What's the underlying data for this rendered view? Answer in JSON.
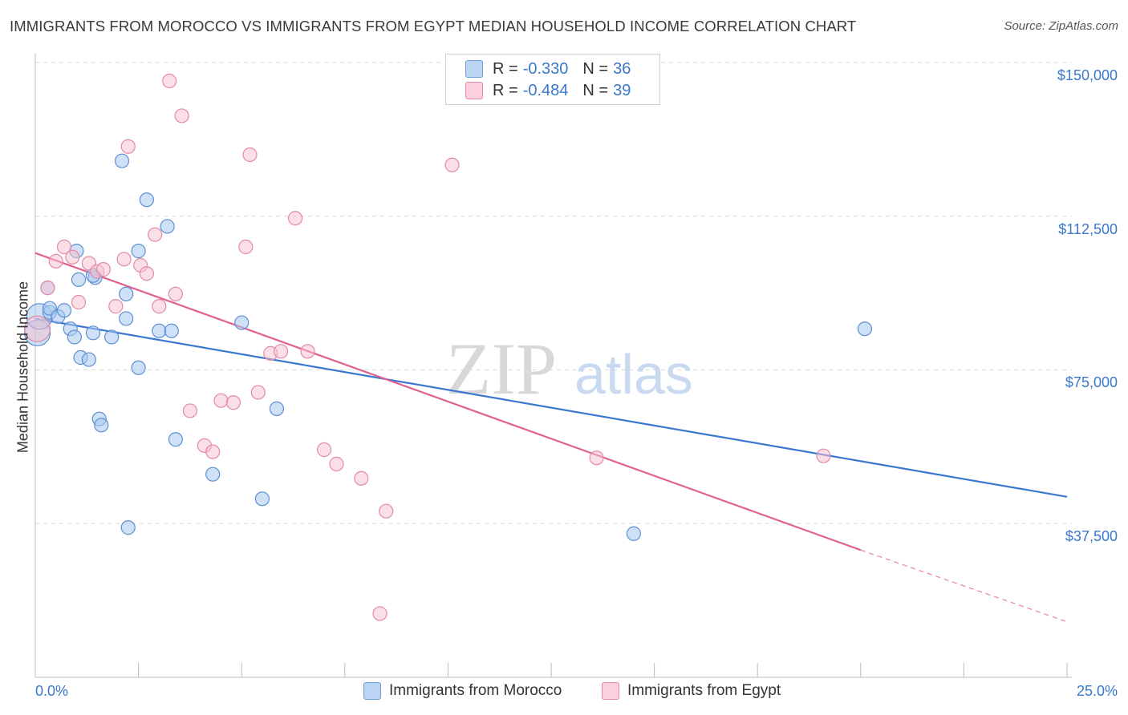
{
  "title": "IMMIGRANTS FROM MOROCCO VS IMMIGRANTS FROM EGYPT MEDIAN HOUSEHOLD INCOME CORRELATION CHART",
  "source": "Source: ZipAtlas.com",
  "watermark": {
    "zip": "ZIP",
    "atlas": "atlas"
  },
  "legend": {
    "rows": [
      {
        "r_label": "R =",
        "r_value": "-0.330",
        "n_label": "N =",
        "n_value": "36",
        "color": "#a8c8f0",
        "border": "#6f9fd8"
      },
      {
        "r_label": "R =",
        "r_value": "-0.484",
        "n_label": "N =",
        "n_value": "39",
        "color": "#f8c0d0",
        "border": "#e88aa8"
      }
    ]
  },
  "bottom_legend": {
    "morocco": "Immigrants from Morocco",
    "egypt": "Immigrants from Egypt"
  },
  "colors": {
    "morocco": "#3a78d0",
    "egypt": "#e0628f",
    "tick": "#3a78c9"
  },
  "chart_data": {
    "type": "scatter",
    "ylabel": "Median Household Income",
    "xlim": [
      0,
      25
    ],
    "ylim": [
      0,
      155000
    ],
    "y_ticks": [
      {
        "value": 37500,
        "label": "$37,500"
      },
      {
        "value": 75000,
        "label": "$75,000"
      },
      {
        "value": 112500,
        "label": "$112,500"
      },
      {
        "value": 150000,
        "label": "$150,000"
      }
    ],
    "x_tick_labels": {
      "min": "0.0%",
      "max": "25.0%"
    },
    "series": [
      {
        "name": "Immigrants from Morocco",
        "color": "#3a78d0",
        "points": [
          [
            0.05,
            84000
          ],
          [
            0.1,
            88000
          ],
          [
            0.3,
            95000
          ],
          [
            0.35,
            89000
          ],
          [
            0.35,
            90000
          ],
          [
            0.55,
            88000
          ],
          [
            0.7,
            89500
          ],
          [
            0.85,
            85000
          ],
          [
            0.95,
            83000
          ],
          [
            1.0,
            104000
          ],
          [
            1.1,
            78000
          ],
          [
            1.3,
            77500
          ],
          [
            1.05,
            97000
          ],
          [
            1.45,
            97500
          ],
          [
            1.4,
            84000
          ],
          [
            1.55,
            63000
          ],
          [
            1.6,
            61500
          ],
          [
            1.85,
            83000
          ],
          [
            2.1,
            126000
          ],
          [
            2.2,
            93500
          ],
          [
            2.2,
            87500
          ],
          [
            2.25,
            36500
          ],
          [
            2.5,
            104000
          ],
          [
            2.5,
            75500
          ],
          [
            2.7,
            116500
          ],
          [
            3.0,
            84500
          ],
          [
            3.2,
            110000
          ],
          [
            3.3,
            84500
          ],
          [
            3.4,
            58000
          ],
          [
            4.3,
            49500
          ],
          [
            5.0,
            86500
          ],
          [
            5.5,
            43500
          ],
          [
            5.85,
            65500
          ],
          [
            14.5,
            35000
          ],
          [
            20.1,
            85000
          ],
          [
            1.4,
            98000
          ]
        ]
      },
      {
        "name": "Immigrants from Egypt",
        "color": "#e0628f",
        "points": [
          [
            0.05,
            85000
          ],
          [
            0.3,
            95000
          ],
          [
            0.5,
            101500
          ],
          [
            0.7,
            105000
          ],
          [
            0.9,
            102500
          ],
          [
            1.05,
            91500
          ],
          [
            1.3,
            101000
          ],
          [
            1.5,
            99000
          ],
          [
            1.65,
            99500
          ],
          [
            1.95,
            90500
          ],
          [
            2.15,
            102000
          ],
          [
            2.25,
            129500
          ],
          [
            2.55,
            100500
          ],
          [
            2.7,
            98500
          ],
          [
            2.9,
            108000
          ],
          [
            3.0,
            90500
          ],
          [
            3.25,
            145500
          ],
          [
            3.4,
            93500
          ],
          [
            3.55,
            137000
          ],
          [
            3.75,
            65000
          ],
          [
            4.1,
            56500
          ],
          [
            4.3,
            55000
          ],
          [
            4.5,
            67500
          ],
          [
            4.8,
            67000
          ],
          [
            5.1,
            105000
          ],
          [
            5.2,
            127500
          ],
          [
            5.4,
            69500
          ],
          [
            5.7,
            79000
          ],
          [
            5.95,
            79500
          ],
          [
            6.3,
            112000
          ],
          [
            6.6,
            79500
          ],
          [
            7.0,
            55500
          ],
          [
            7.3,
            52000
          ],
          [
            7.9,
            48500
          ],
          [
            8.5,
            40500
          ],
          [
            10.1,
            125000
          ],
          [
            8.35,
            15500
          ],
          [
            13.6,
            53500
          ],
          [
            19.1,
            54000
          ]
        ]
      }
    ],
    "trend_lines": [
      {
        "series": "Immigrants from Morocco",
        "x": [
          0,
          25
        ],
        "y": [
          87500,
          44000
        ]
      },
      {
        "series": "Immigrants from Egypt",
        "x": [
          0,
          20
        ],
        "y": [
          103500,
          31000
        ],
        "dashed_to": [
          25,
          13500
        ]
      }
    ]
  }
}
